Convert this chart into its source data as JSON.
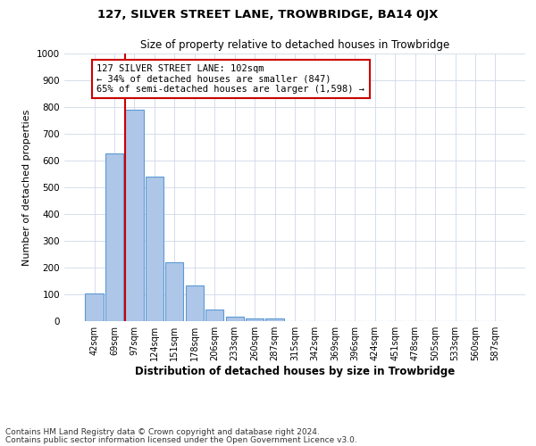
{
  "title": "127, SILVER STREET LANE, TROWBRIDGE, BA14 0JX",
  "subtitle": "Size of property relative to detached houses in Trowbridge",
  "xlabel": "Distribution of detached houses by size in Trowbridge",
  "ylabel": "Number of detached properties",
  "categories": [
    "42sqm",
    "69sqm",
    "97sqm",
    "124sqm",
    "151sqm",
    "178sqm",
    "206sqm",
    "233sqm",
    "260sqm",
    "287sqm",
    "315sqm",
    "342sqm",
    "369sqm",
    "396sqm",
    "424sqm",
    "451sqm",
    "478sqm",
    "505sqm",
    "533sqm",
    "560sqm",
    "587sqm"
  ],
  "values": [
    103,
    628,
    790,
    540,
    220,
    133,
    42,
    17,
    10,
    11,
    0,
    0,
    0,
    0,
    0,
    0,
    0,
    0,
    0,
    0,
    0
  ],
  "bar_color": "#aec6e8",
  "bar_edge_color": "#5b9bd5",
  "vline_color": "#cc0000",
  "annotation_text": "127 SILVER STREET LANE: 102sqm\n← 34% of detached houses are smaller (847)\n65% of semi-detached houses are larger (1,598) →",
  "annotation_box_color": "#ffffff",
  "annotation_box_edge_color": "#cc0000",
  "ylim": [
    0,
    1000
  ],
  "yticks": [
    0,
    100,
    200,
    300,
    400,
    500,
    600,
    700,
    800,
    900,
    1000
  ],
  "bg_color": "#ffffff",
  "grid_color": "#d0d8e8",
  "footer_line1": "Contains HM Land Registry data © Crown copyright and database right 2024.",
  "footer_line2": "Contains public sector information licensed under the Open Government Licence v3.0.",
  "title_fontsize": 9.5,
  "subtitle_fontsize": 8.5,
  "ylabel_fontsize": 8,
  "xlabel_fontsize": 8.5,
  "annotation_fontsize": 7.5,
  "tick_fontsize": 7,
  "ytick_fontsize": 7.5,
  "footer_fontsize": 6.5
}
